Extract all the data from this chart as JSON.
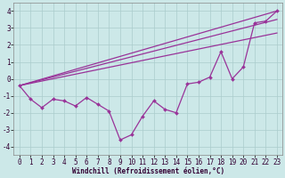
{
  "title": "",
  "xlabel": "Windchill (Refroidissement éolien,°C)",
  "bg_color": "#cce8e8",
  "grid_color": "#aacccc",
  "line_color": "#993399",
  "xlim": [
    -0.5,
    23.5
  ],
  "ylim": [
    -4.5,
    4.5
  ],
  "xticks": [
    0,
    1,
    2,
    3,
    4,
    5,
    6,
    7,
    8,
    9,
    10,
    11,
    12,
    13,
    14,
    15,
    16,
    17,
    18,
    19,
    20,
    21,
    22,
    23
  ],
  "yticks": [
    -4,
    -3,
    -2,
    -1,
    0,
    1,
    2,
    3,
    4
  ],
  "data_x": [
    0,
    1,
    2,
    3,
    4,
    5,
    6,
    7,
    8,
    9,
    10,
    11,
    12,
    13,
    14,
    15,
    16,
    17,
    18,
    19,
    20,
    21,
    22,
    23
  ],
  "data_y": [
    -0.4,
    -1.2,
    -1.7,
    -1.2,
    -1.3,
    -1.6,
    -1.1,
    -1.5,
    -1.9,
    -3.6,
    -3.3,
    -2.2,
    -1.3,
    -1.8,
    -2.0,
    -0.3,
    -0.2,
    0.1,
    1.6,
    0.0,
    0.7,
    3.3,
    3.4,
    4.0
  ],
  "line1_x": [
    0,
    23
  ],
  "line1_y": [
    -0.4,
    4.0
  ],
  "line2_x": [
    0,
    23
  ],
  "line2_y": [
    -0.4,
    3.5
  ],
  "line3_x": [
    0,
    23
  ],
  "line3_y": [
    -0.4,
    2.7
  ],
  "tick_fontsize": 5.5,
  "xlabel_fontsize": 5.5
}
